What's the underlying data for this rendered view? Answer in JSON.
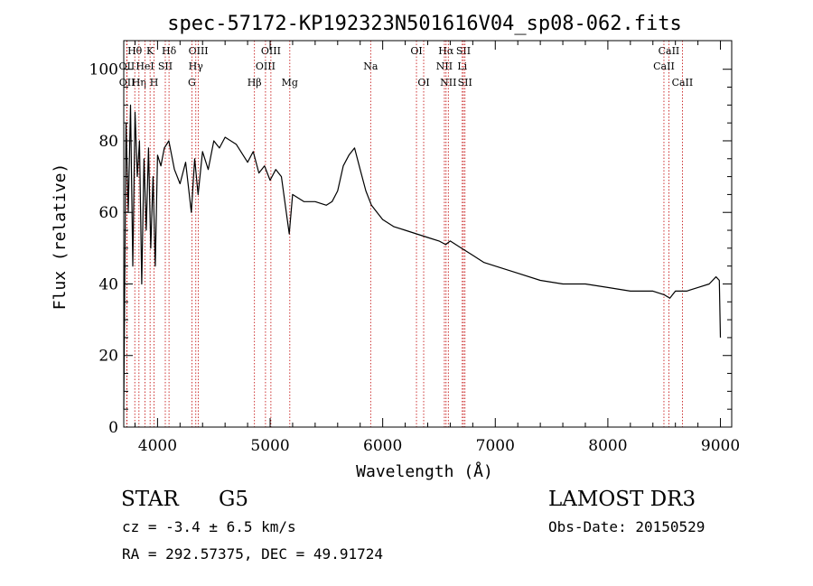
{
  "chart_data": {
    "type": "line",
    "title": "spec-57172-KP192323N501616V04_sp08-062.fits",
    "xlabel": "Wavelength (Å)",
    "ylabel": "Flux (relative)",
    "xlim": [
      3700,
      9100
    ],
    "ylim": [
      0,
      108
    ],
    "xticks": [
      4000,
      5000,
      6000,
      7000,
      8000,
      9000
    ],
    "yticks": [
      0,
      20,
      40,
      60,
      80,
      100
    ],
    "series": [
      {
        "name": "flux",
        "x": [
          3700,
          3720,
          3740,
          3760,
          3780,
          3800,
          3820,
          3840,
          3860,
          3880,
          3900,
          3920,
          3940,
          3960,
          3980,
          4000,
          4030,
          4060,
          4100,
          4150,
          4200,
          4250,
          4300,
          4330,
          4360,
          4400,
          4450,
          4500,
          4550,
          4600,
          4700,
          4800,
          4850,
          4900,
          4950,
          5000,
          5050,
          5100,
          5170,
          5200,
          5300,
          5400,
          5500,
          5550,
          5600,
          5650,
          5700,
          5750,
          5800,
          5850,
          5900,
          5950,
          6000,
          6100,
          6200,
          6300,
          6400,
          6500,
          6560,
          6600,
          6700,
          6800,
          6900,
          7000,
          7200,
          7400,
          7600,
          7800,
          8000,
          8200,
          8400,
          8500,
          8550,
          8600,
          8700,
          8800,
          8900,
          8960,
          8990,
          9000
        ],
        "y": [
          5,
          85,
          60,
          90,
          45,
          88,
          70,
          80,
          40,
          75,
          55,
          78,
          50,
          70,
          45,
          76,
          73,
          78,
          80,
          72,
          68,
          74,
          60,
          75,
          65,
          77,
          72,
          80,
          78,
          81,
          79,
          74,
          77,
          71,
          73,
          69,
          72,
          70,
          54,
          65,
          63,
          63,
          62,
          63,
          66,
          73,
          76,
          78,
          72,
          66,
          62,
          60,
          58,
          56,
          55,
          54,
          53,
          52,
          51,
          52,
          50,
          48,
          46,
          45,
          43,
          41,
          40,
          40,
          39,
          38,
          38,
          37,
          36,
          38,
          38,
          39,
          40,
          42,
          41,
          25
        ]
      }
    ],
    "lines": [
      {
        "name": "Hθ",
        "w": 3798,
        "row": 0
      },
      {
        "name": "OII",
        "w": 3727,
        "row": 1
      },
      {
        "name": "OII",
        "w": 3729,
        "row": 2
      },
      {
        "name": "Hη",
        "w": 3835,
        "row": 2
      },
      {
        "name": "HeI",
        "w": 3889,
        "row": 1
      },
      {
        "name": "K",
        "w": 3934,
        "row": 0
      },
      {
        "name": "H",
        "w": 3969,
        "row": 2
      },
      {
        "name": "SII",
        "w": 4069,
        "row": 1
      },
      {
        "name": "Hδ",
        "w": 4102,
        "row": 0
      },
      {
        "name": "OIII",
        "w": 4363,
        "row": 0
      },
      {
        "name": "Hγ",
        "w": 4340,
        "row": 1
      },
      {
        "name": "G",
        "w": 4305,
        "row": 2
      },
      {
        "name": "Hβ",
        "w": 4861,
        "row": 2
      },
      {
        "name": "OIII",
        "w": 5007,
        "row": 0
      },
      {
        "name": "OIII",
        "w": 4959,
        "row": 1
      },
      {
        "name": "Mg",
        "w": 5175,
        "row": 2
      },
      {
        "name": "Na",
        "w": 5893,
        "row": 1
      },
      {
        "name": "OI",
        "w": 6300,
        "row": 0
      },
      {
        "name": "OI",
        "w": 6364,
        "row": 2
      },
      {
        "name": "Hα",
        "w": 6563,
        "row": 0
      },
      {
        "name": "NII",
        "w": 6548,
        "row": 1
      },
      {
        "name": "NII",
        "w": 6583,
        "row": 2
      },
      {
        "name": "SII",
        "w": 6717,
        "row": 0
      },
      {
        "name": "Li",
        "w": 6707,
        "row": 1
      },
      {
        "name": "SII",
        "w": 6731,
        "row": 2
      },
      {
        "name": "CaII",
        "w": 8542,
        "row": 0
      },
      {
        "name": "CaII",
        "w": 8498,
        "row": 1
      },
      {
        "name": "CaII",
        "w": 8662,
        "row": 2
      }
    ]
  },
  "info": {
    "object_class": "STAR",
    "subclass": "G5",
    "survey": "LAMOST DR3",
    "cz": "cz = -3.4 ± 6.5 km/s",
    "obs_date": "Obs-Date: 20150529",
    "coords": "RA = 292.57375, DEC =  49.91724"
  },
  "colors": {
    "axis": "#000000",
    "spectrum": "#000000",
    "line_marker": "#c00000"
  }
}
